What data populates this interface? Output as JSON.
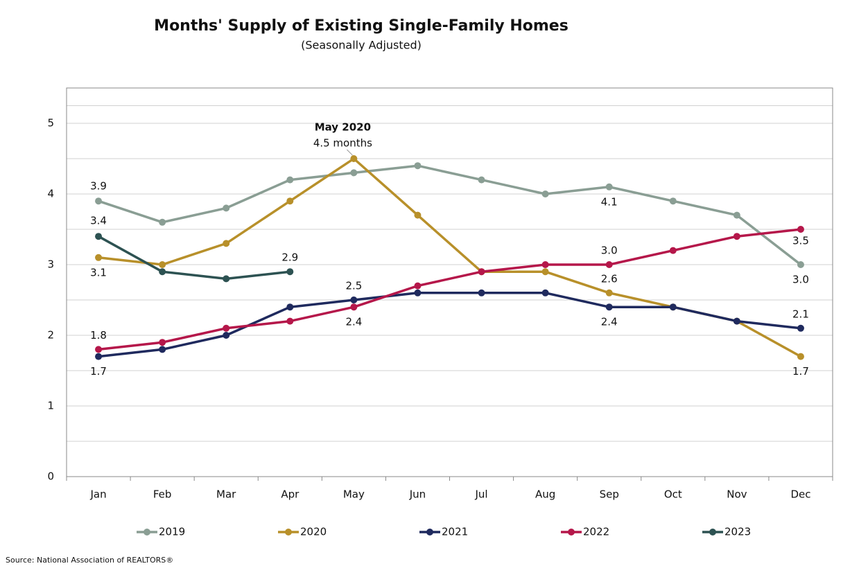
{
  "chart_data": {
    "type": "line",
    "title": "Months' Supply of Existing Single-Family Homes",
    "subtitle": "(Seasonally Adjusted)",
    "source": "Source: National Association of REALTORS®",
    "annotation": {
      "title": "May 2020",
      "text": "4.5 months"
    },
    "categories": [
      "Jan",
      "Feb",
      "Mar",
      "Apr",
      "May",
      "Jun",
      "Jul",
      "Aug",
      "Sep",
      "Oct",
      "Nov",
      "Dec"
    ],
    "ylim": [
      0,
      5.5
    ],
    "yticks": [
      0,
      1,
      2,
      3,
      4,
      5
    ],
    "grid": true,
    "minor_grid": true,
    "legend": "bottom",
    "series": [
      {
        "name": "2019",
        "color": "#8a9e94",
        "values": [
          3.9,
          3.6,
          3.8,
          4.2,
          4.3,
          4.4,
          4.2,
          4.0,
          4.1,
          3.9,
          3.7,
          3.0
        ],
        "value_labels": [
          "3.9",
          null,
          null,
          null,
          null,
          null,
          null,
          null,
          "4.1",
          null,
          null,
          "3.0"
        ]
      },
      {
        "name": "2020",
        "color": "#b8902a",
        "values": [
          3.1,
          3.0,
          3.3,
          3.9,
          4.5,
          3.7,
          2.9,
          2.9,
          2.6,
          2.4,
          2.2,
          1.7
        ],
        "value_labels": [
          "3.1",
          null,
          null,
          null,
          null,
          null,
          null,
          null,
          "2.6",
          null,
          null,
          "1.7"
        ]
      },
      {
        "name": "2021",
        "color": "#1f2a5e",
        "values": [
          1.7,
          1.8,
          2.0,
          2.4,
          2.5,
          2.6,
          2.6,
          2.6,
          2.4,
          2.4,
          2.2,
          2.1
        ],
        "value_labels": [
          "1.7",
          null,
          null,
          null,
          "2.5",
          null,
          null,
          null,
          "2.4",
          null,
          null,
          "2.1"
        ]
      },
      {
        "name": "2022",
        "color": "#b5174a",
        "values": [
          1.8,
          1.9,
          2.1,
          2.2,
          2.4,
          2.7,
          2.9,
          3.0,
          3.0,
          3.2,
          3.4,
          3.5
        ],
        "value_labels": [
          "1.8",
          null,
          null,
          null,
          "2.4",
          null,
          null,
          null,
          "3.0",
          null,
          null,
          "3.5"
        ]
      },
      {
        "name": "2023",
        "color": "#2d5252",
        "values": [
          3.4,
          2.9,
          2.8,
          2.9,
          null,
          null,
          null,
          null,
          null,
          null,
          null,
          null
        ],
        "value_labels": [
          "3.4",
          null,
          null,
          "2.9",
          null,
          null,
          null,
          null,
          null,
          null,
          null,
          null
        ]
      }
    ]
  }
}
